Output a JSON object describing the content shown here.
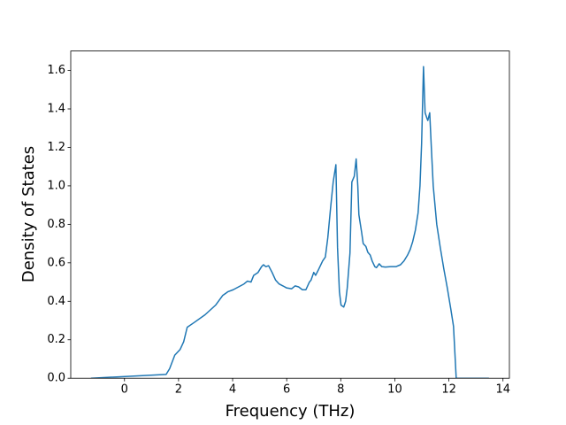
{
  "chart_data": {
    "type": "line",
    "xlabel": "Frequency (THz)",
    "ylabel": "Density of States",
    "color": "#1f77b4",
    "xlim": [
      -1.9875,
      14.2375
    ],
    "ylim": [
      0,
      1.701
    ],
    "xticks": [
      0,
      2,
      4,
      6,
      8,
      10,
      12,
      14
    ],
    "yticks": [
      {
        "value": 0,
        "label": "0.0"
      },
      0.2,
      0.4,
      0.6,
      0.8,
      {
        "value": 1,
        "label": "1.0"
      },
      1.2,
      1.4,
      1.6
    ],
    "x": [
      -1.24,
      1.54,
      1.67,
      1.86,
      2.06,
      2.19,
      2.32,
      2.58,
      2.98,
      3.37,
      3.63,
      3.83,
      4.02,
      4.22,
      4.42,
      4.55,
      4.68,
      4.78,
      4.94,
      5.07,
      5.14,
      5.23,
      5.33,
      5.46,
      5.59,
      5.72,
      5.86,
      5.99,
      6.18,
      6.31,
      6.44,
      6.58,
      6.71,
      6.84,
      6.9,
      7.0,
      7.07,
      7.16,
      7.33,
      7.43,
      7.52,
      7.62,
      7.72,
      7.82,
      7.88,
      7.95,
      8.01,
      8.11,
      8.18,
      8.24,
      8.34,
      8.41,
      8.5,
      8.57,
      8.63,
      8.67,
      8.77,
      8.83,
      8.93,
      9.0,
      9.09,
      9.16,
      9.26,
      9.32,
      9.42,
      9.52,
      9.65,
      9.85,
      10.04,
      10.21,
      10.34,
      10.47,
      10.57,
      10.66,
      10.76,
      10.86,
      10.93,
      10.99,
      11.06,
      11.12,
      11.19,
      11.22,
      11.29,
      11.35,
      11.42,
      11.55,
      11.68,
      11.81,
      11.94,
      12.07,
      12.17,
      12.27,
      13.48
    ],
    "values": [
      0,
      0.02,
      0.05,
      0.12,
      0.15,
      0.19,
      0.265,
      0.29,
      0.33,
      0.38,
      0.43,
      0.45,
      0.46,
      0.475,
      0.49,
      0.505,
      0.5,
      0.535,
      0.55,
      0.58,
      0.59,
      0.58,
      0.585,
      0.55,
      0.51,
      0.49,
      0.48,
      0.47,
      0.465,
      0.48,
      0.475,
      0.46,
      0.46,
      0.5,
      0.51,
      0.55,
      0.535,
      0.56,
      0.61,
      0.63,
      0.73,
      0.88,
      1.02,
      1.11,
      0.68,
      0.45,
      0.38,
      0.37,
      0.4,
      0.47,
      0.65,
      1.02,
      1.05,
      1.14,
      1.0,
      0.85,
      0.76,
      0.7,
      0.685,
      0.655,
      0.64,
      0.61,
      0.58,
      0.575,
      0.595,
      0.58,
      0.578,
      0.58,
      0.58,
      0.59,
      0.61,
      0.64,
      0.67,
      0.71,
      0.77,
      0.86,
      1.0,
      1.22,
      1.62,
      1.38,
      1.35,
      1.34,
      1.38,
      1.2,
      1.0,
      0.8,
      0.68,
      0.57,
      0.47,
      0.36,
      0.27,
      0,
      0
    ]
  }
}
